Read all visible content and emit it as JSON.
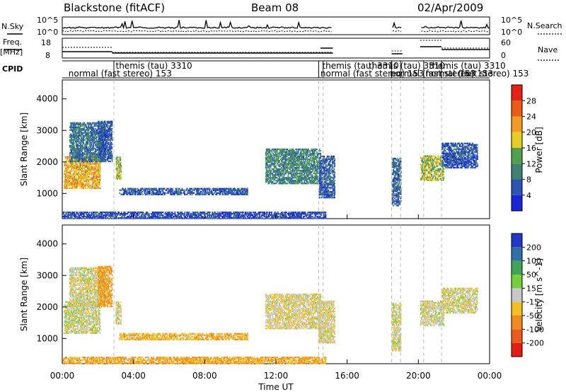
{
  "header": {
    "station": "Blackstone (fitACF)",
    "beam": "Beam 08",
    "date": "02/Apr/2009"
  },
  "left_labels": {
    "nsky": "N.Sky",
    "freq_line1": "Freq.",
    "freq_line2": "[MHz]",
    "cpid": "CPID"
  },
  "right_labels": {
    "nsearch": "N.Search",
    "nave": "Nave"
  },
  "noise_panel": {
    "left_ticks": [
      "10^5",
      "10^0"
    ],
    "right_ticks": [
      "10^5",
      "10^0"
    ]
  },
  "freq_panel": {
    "left_ticks": [
      "18",
      "8"
    ],
    "right_ticks": [
      "60",
      "0"
    ]
  },
  "cpid_labels": [
    {
      "text": "normal (fast stereo) 153",
      "t": 0.35,
      "row": 2
    },
    {
      "text": "themis (tau) 3310",
      "t": 3.0,
      "row": 1
    },
    {
      "text": "themis (tau) 3310",
      "t": 14.6,
      "row": 1
    },
    {
      "text": "normal (fast stereo) 153",
      "t": 14.5,
      "row": 2
    },
    {
      "text": "themis (tau) 3310",
      "t": 17.2,
      "row": 1
    },
    {
      "text": "normal (fast stereo) 153",
      "t": 18.4,
      "row": 2
    },
    {
      "text": "themis (tau) 3310",
      "t": 20.6,
      "row": 1
    },
    {
      "text": "normal (fast stereo) 153",
      "t": 20.4,
      "row": 2
    },
    {
      "text": "153",
      "t": 22.3,
      "row": 2
    }
  ],
  "mode_change_hours": [
    2.9,
    14.4,
    14.65,
    18.5,
    19.0,
    20.3,
    21.3
  ],
  "x_axis": {
    "label": "Time UT",
    "ticks": [
      "00:00",
      "04:00",
      "08:00",
      "12:00",
      "16:00",
      "20:00",
      "00:00"
    ]
  },
  "y_axis": {
    "label": "Slant Range [km]",
    "ticks": [
      "1000",
      "2000",
      "3000",
      "4000"
    ]
  },
  "power_scale": {
    "label": "Power [dB]",
    "ticks": [
      "4",
      "8",
      "12",
      "16",
      "20",
      "24",
      "28"
    ],
    "colors": [
      "#1a25d6",
      "#2a55b2",
      "#3f8272",
      "#50a04e",
      "#e8cc26",
      "#f09c22",
      "#ec5a1a",
      "#e32114"
    ]
  },
  "velocity_scale": {
    "label": "Velocity [m s^-1]",
    "ticks": [
      "200",
      "100",
      "50",
      "15",
      "-15",
      "-50",
      "-100",
      "-200"
    ],
    "colors": [
      "#2236c7",
      "#2f70a7",
      "#3fa35a",
      "#76cd3a",
      "#c8c8c8",
      "#f2c020",
      "#f08a20",
      "#ea5a1a",
      "#e21d14"
    ]
  },
  "chart_data": {
    "type": "heatmap",
    "title": "Blackstone (fitACF)  Beam 08  02/Apr/2009",
    "xlabel": "Time UT",
    "ylabel": "Slant Range [km]",
    "xlim": [
      0,
      24
    ],
    "ylim": [
      200,
      4600
    ],
    "panels": [
      "Power [dB]",
      "Velocity [m s^-1]"
    ],
    "scatter_regions": [
      {
        "t0": 0.1,
        "t1": 2.1,
        "r0": 1150,
        "r1": 2150,
        "power": 20,
        "velocity": 0
      },
      {
        "t0": 0.4,
        "t1": 2.4,
        "r0": 2000,
        "r1": 3250,
        "power": 8,
        "velocity": -5
      },
      {
        "t0": 2.0,
        "t1": 2.8,
        "r0": 2000,
        "r1": 3300,
        "power": 6,
        "velocity": -60
      },
      {
        "t0": 3.0,
        "t1": 3.3,
        "r0": 1450,
        "r1": 2150,
        "power": 15,
        "velocity": -5
      },
      {
        "t0": 3.2,
        "t1": 10.4,
        "r0": 950,
        "r1": 1150,
        "power": 6,
        "velocity": -40
      },
      {
        "t0": 0.0,
        "t1": 14.8,
        "r0": 200,
        "r1": 400,
        "power": 4,
        "velocity": -50
      },
      {
        "t0": 11.4,
        "t1": 14.5,
        "r0": 1300,
        "r1": 2400,
        "power": 10,
        "velocity": -10
      },
      {
        "t0": 14.4,
        "t1": 15.3,
        "r0": 850,
        "r1": 2200,
        "power": 6,
        "velocity": -10
      },
      {
        "t0": 18.5,
        "t1": 19.0,
        "r0": 600,
        "r1": 2100,
        "power": 7,
        "velocity": -5
      },
      {
        "t0": 20.1,
        "t1": 21.4,
        "r0": 1400,
        "r1": 2200,
        "power": 16,
        "velocity": -5
      },
      {
        "t0": 21.3,
        "t1": 23.3,
        "r0": 1800,
        "r1": 2600,
        "power": 5,
        "velocity": -5
      }
    ]
  }
}
